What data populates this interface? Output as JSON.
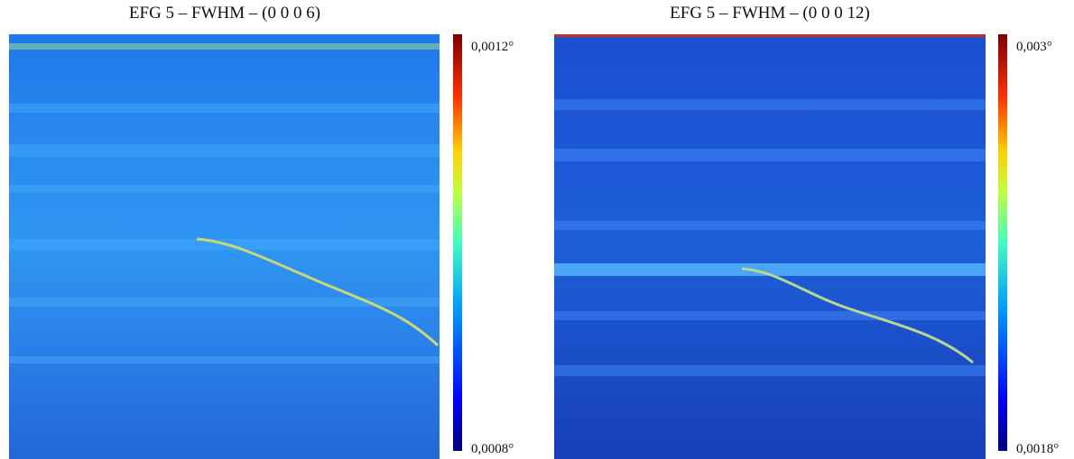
{
  "panels": [
    {
      "title": "EFG 5 – FWHM – (0 0 0 6)",
      "colorbar": {
        "max": "0,0012°",
        "min": "0,0008°"
      }
    },
    {
      "title": "EFG 5 – FWHM – (0 0 0 12)",
      "colorbar": {
        "max": "0,003°",
        "min": "0,0018°"
      }
    }
  ]
}
